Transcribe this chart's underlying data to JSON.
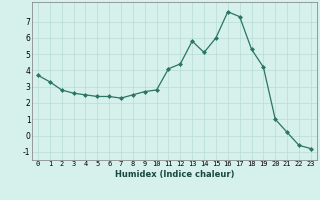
{
  "x": [
    0,
    1,
    2,
    3,
    4,
    5,
    6,
    7,
    8,
    9,
    10,
    11,
    12,
    13,
    14,
    15,
    16,
    17,
    18,
    19,
    20,
    21,
    22,
    23
  ],
  "y": [
    3.7,
    3.3,
    2.8,
    2.6,
    2.5,
    2.4,
    2.4,
    2.3,
    2.5,
    2.7,
    2.8,
    4.1,
    4.4,
    5.8,
    5.1,
    6.0,
    7.6,
    7.3,
    5.3,
    4.2,
    1.0,
    0.2,
    -0.6,
    -0.8
  ],
  "xlabel": "Humidex (Indice chaleur)",
  "ylim": [
    -1.5,
    8.2
  ],
  "xlim": [
    -0.5,
    23.5
  ],
  "yticks": [
    -1,
    0,
    1,
    2,
    3,
    4,
    5,
    6,
    7
  ],
  "xticks": [
    0,
    1,
    2,
    3,
    4,
    5,
    6,
    7,
    8,
    9,
    10,
    11,
    12,
    13,
    14,
    15,
    16,
    17,
    18,
    19,
    20,
    21,
    22,
    23
  ],
  "line_color": "#2a7566",
  "marker_color": "#2a7566",
  "bg_color": "#d6f0ec",
  "grid_color": "#b8dbd6",
  "grid_major_color": "#c8e8e3"
}
